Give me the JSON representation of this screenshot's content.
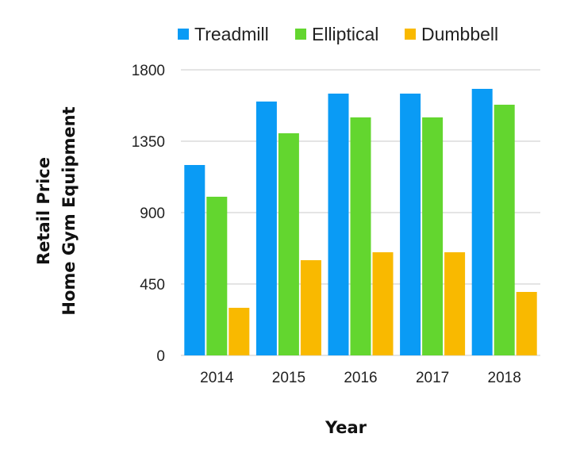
{
  "chart_data": {
    "type": "bar",
    "categories": [
      "2014",
      "2015",
      "2016",
      "2017",
      "2018"
    ],
    "series": [
      {
        "name": "Treadmill",
        "color": "#0a9bf5",
        "values": [
          1200,
          1600,
          1650,
          1650,
          1680
        ]
      },
      {
        "name": "Elliptical",
        "color": "#63d62f",
        "values": [
          1000,
          1400,
          1500,
          1500,
          1580
        ]
      },
      {
        "name": "Dumbbell",
        "color": "#f9b900",
        "values": [
          300,
          600,
          650,
          650,
          400
        ]
      }
    ],
    "yticks": [
      "0",
      "450",
      "900",
      "1350",
      "1800"
    ],
    "ylim": [
      0,
      1800
    ],
    "xlabel": "Year",
    "ylabel": [
      "Retail Price",
      "Home Gym Equipment"
    ],
    "legend_position": "top",
    "grid": true
  }
}
